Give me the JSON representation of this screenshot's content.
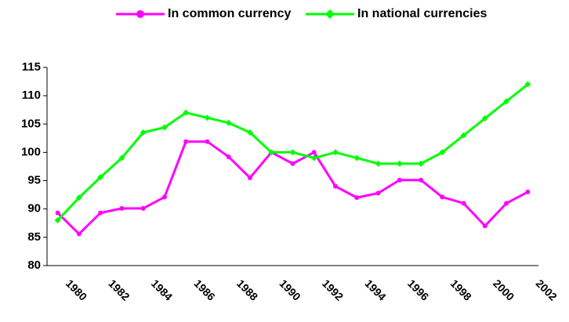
{
  "chart_data": {
    "type": "line",
    "categories": [
      "1980",
      null,
      "1982",
      null,
      "1984",
      null,
      "1986",
      null,
      "1988",
      null,
      "1990",
      null,
      "1992",
      null,
      "1994",
      null,
      "1996",
      null,
      "1998",
      null,
      "2000",
      null,
      "2002"
    ],
    "series": [
      {
        "name": "In common currency",
        "color": "#ff00ff",
        "marker": "circle",
        "values": [
          89.3,
          85.6,
          89.3,
          90.1,
          90.1,
          92.1,
          101.9,
          101.9,
          99.2,
          95.5,
          100,
          98,
          100,
          94,
          92,
          92.8,
          95.1,
          95.1,
          92.1,
          91,
          87,
          91,
          93
        ]
      },
      {
        "name": "In national currencies",
        "color": "#00ff00",
        "marker": "diamond",
        "values": [
          88,
          92,
          95.6,
          99,
          103.5,
          104.4,
          107,
          106.1,
          105.2,
          103.5,
          100,
          100,
          99,
          100,
          99,
          98,
          98,
          98,
          100,
          103,
          106,
          109,
          112
        ]
      }
    ],
    "ylim": [
      80,
      115
    ],
    "yticks": [
      80,
      85,
      90,
      95,
      100,
      105,
      110,
      115
    ],
    "grid": false,
    "legend": "top"
  }
}
